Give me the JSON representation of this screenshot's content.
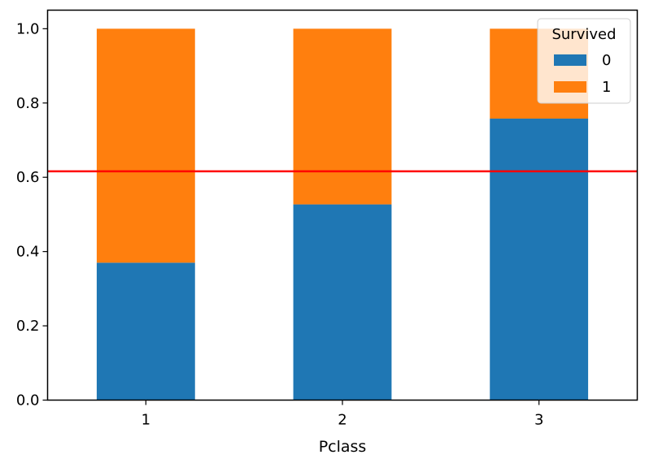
{
  "chart_data": {
    "type": "bar",
    "stacked": true,
    "categories": [
      "1",
      "2",
      "3"
    ],
    "series": [
      {
        "name": "0",
        "values": [
          0.37,
          0.527,
          0.758
        ],
        "color": "#1f77b4"
      },
      {
        "name": "1",
        "values": [
          0.63,
          0.473,
          0.242
        ],
        "color": "#ff7f0e"
      }
    ],
    "reference_line": {
      "y": 0.616,
      "color": "#ff0000"
    },
    "xlabel": "Pclass",
    "ylabel": "",
    "ylim": [
      0,
      1.05
    ],
    "yticks": [
      "0.0",
      "0.2",
      "0.4",
      "0.6",
      "0.8",
      "1.0"
    ],
    "legend": {
      "title": "Survived",
      "position": "top-right"
    },
    "grid": false
  }
}
